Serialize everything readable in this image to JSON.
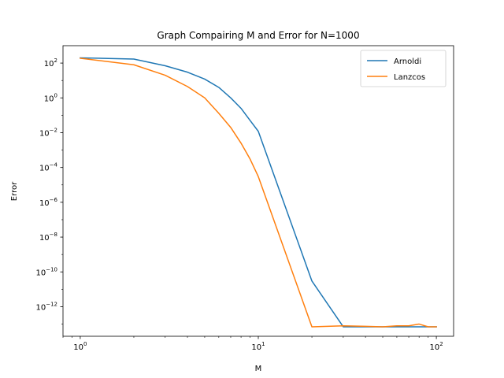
{
  "chart_data": {
    "type": "line",
    "title": "Graph Compairing M and Error for N=1000",
    "xlabel": "M",
    "ylabel": "Error",
    "xscale": "log",
    "yscale": "log",
    "xlim": [
      0.8,
      125
    ],
    "ylim": [
      2e-14,
      1000
    ],
    "grid": false,
    "legend_position": "top-right",
    "x_ticks": [
      {
        "value": 1,
        "base": "10",
        "exp": "0"
      },
      {
        "value": 10,
        "base": "10",
        "exp": "1"
      },
      {
        "value": 100,
        "base": "10",
        "exp": "2"
      }
    ],
    "y_ticks": [
      {
        "value": 100.0,
        "base": "10",
        "exp": "2"
      },
      {
        "value": 1.0,
        "base": "10",
        "exp": "0"
      },
      {
        "value": 0.01,
        "base": "10",
        "exp": "−2"
      },
      {
        "value": 0.0001,
        "base": "10",
        "exp": "−4"
      },
      {
        "value": 1e-06,
        "base": "10",
        "exp": "−6"
      },
      {
        "value": 1e-08,
        "base": "10",
        "exp": "−8"
      },
      {
        "value": 1e-10,
        "base": "10",
        "exp": "−10"
      },
      {
        "value": 1e-12,
        "base": "10",
        "exp": "−12"
      }
    ],
    "series": [
      {
        "name": "Arnoldi",
        "color": "#1f77b4",
        "points": [
          [
            1,
            200
          ],
          [
            2,
            170
          ],
          [
            3,
            70
          ],
          [
            4,
            30
          ],
          [
            5,
            12
          ],
          [
            6,
            4
          ],
          [
            7,
            1.0
          ],
          [
            8,
            0.25
          ],
          [
            9,
            0.05
          ],
          [
            10,
            0.012
          ],
          [
            20,
            3e-11
          ],
          [
            30,
            7e-14
          ],
          [
            40,
            7e-14
          ],
          [
            50,
            7e-14
          ],
          [
            60,
            7e-14
          ],
          [
            70,
            7e-14
          ],
          [
            80,
            7e-14
          ],
          [
            90,
            7e-14
          ],
          [
            100,
            7e-14
          ]
        ]
      },
      {
        "name": "Lanzcos",
        "color": "#ff7f0e",
        "points": [
          [
            1,
            190
          ],
          [
            2,
            80
          ],
          [
            3,
            20
          ],
          [
            4,
            4.5
          ],
          [
            5,
            1.0
          ],
          [
            6,
            0.13
          ],
          [
            7,
            0.02
          ],
          [
            8,
            0.0025
          ],
          [
            9,
            0.0003
          ],
          [
            10,
            3e-05
          ],
          [
            20,
            7e-14
          ],
          [
            30,
            8e-14
          ],
          [
            40,
            7.5e-14
          ],
          [
            50,
            7e-14
          ],
          [
            60,
            8e-14
          ],
          [
            70,
            8e-14
          ],
          [
            80,
            1e-13
          ],
          [
            90,
            7e-14
          ],
          [
            100,
            7e-14
          ]
        ]
      }
    ]
  }
}
